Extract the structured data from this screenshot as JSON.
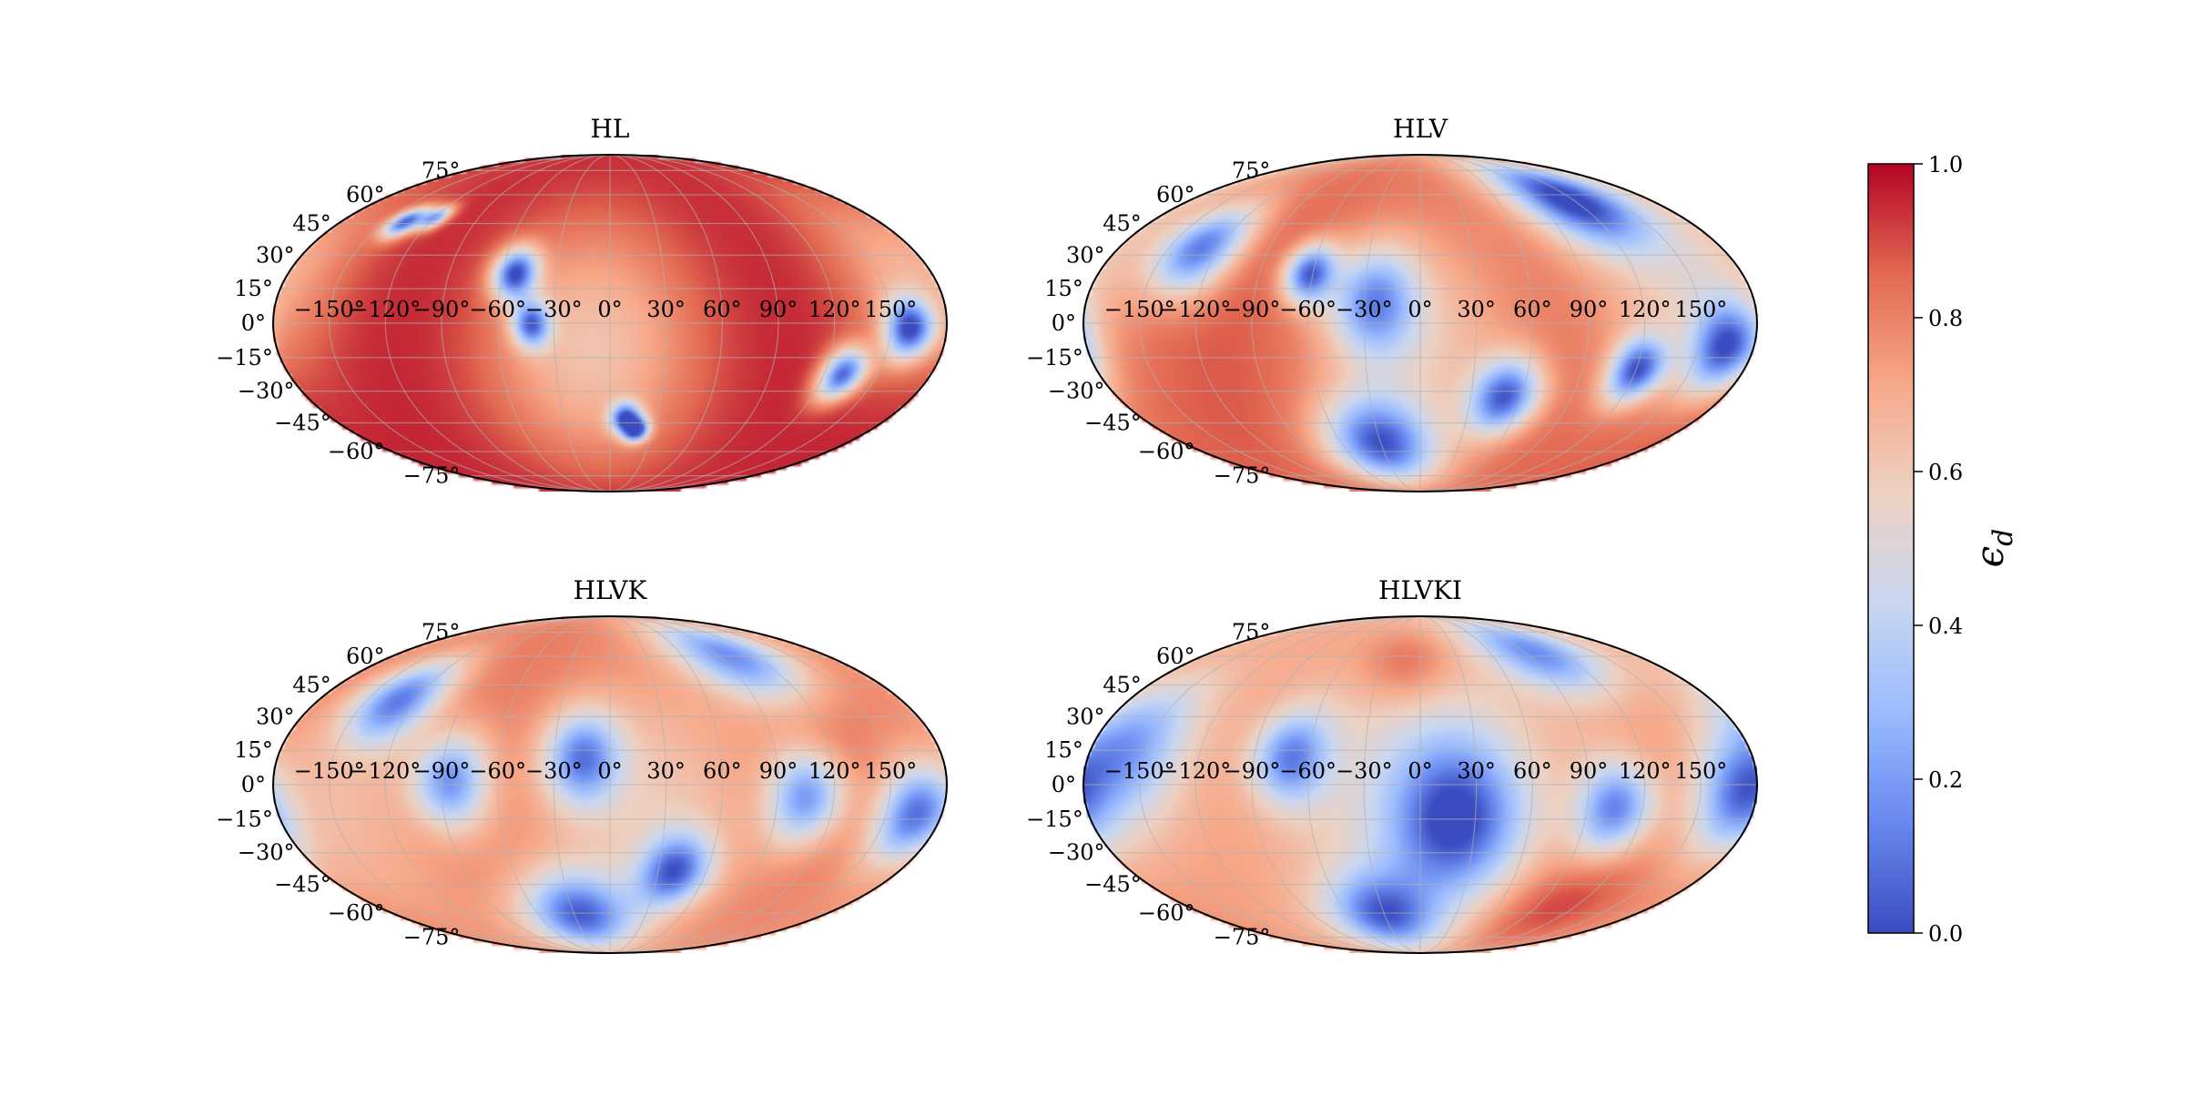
{
  "chart_data": [
    {
      "type": "heatmap",
      "projection": "mollweide",
      "title": "HL",
      "lon_ticks": [
        "−150°",
        "−120°",
        "−90°",
        "−60°",
        "−30°",
        "0°",
        "30°",
        "60°",
        "90°",
        "120°",
        "150°"
      ],
      "lat_ticks": [
        "75°",
        "60°",
        "45°",
        "30°",
        "15°",
        "0°",
        "−15°",
        "−30°",
        "−45°",
        "−60°",
        "−75°"
      ],
      "base_value": 0.97,
      "blobs": [
        {
          "lon": -137,
          "lat": 46,
          "depth": 0.85,
          "width": 5
        },
        {
          "lon": -120,
          "lat": 48,
          "depth": 0.7,
          "width": 4
        },
        {
          "lon": -53,
          "lat": 22,
          "depth": 0.85,
          "width": 8
        },
        {
          "lon": -42,
          "lat": 0,
          "depth": 0.7,
          "width": 7
        },
        {
          "lon": 10,
          "lat": -42,
          "depth": 0.8,
          "width": 5
        },
        {
          "lon": 18,
          "lat": -48,
          "depth": 0.85,
          "width": 4
        },
        {
          "lon": 130,
          "lat": -22,
          "depth": 0.85,
          "width": 8
        },
        {
          "lon": 160,
          "lat": -2,
          "depth": 0.8,
          "width": 9
        },
        {
          "lon": -10,
          "lat": -10,
          "depth": 0.35,
          "width": 40
        },
        {
          "lon": 170,
          "lat": 20,
          "depth": 0.3,
          "width": 30
        }
      ]
    },
    {
      "type": "heatmap",
      "projection": "mollweide",
      "title": "HLV",
      "lon_ticks": [
        "−150°",
        "−120°",
        "−90°",
        "−60°",
        "−30°",
        "0°",
        "30°",
        "60°",
        "90°",
        "120°",
        "150°"
      ],
      "lat_ticks": [
        "75°",
        "60°",
        "45°",
        "30°",
        "15°",
        "0°",
        "−15°",
        "−30°",
        "−45°",
        "−60°",
        "−75°"
      ],
      "base_value": 0.9,
      "blobs": [
        {
          "lon": -130,
          "lat": 33,
          "depth": 0.7,
          "width": 14
        },
        {
          "lon": -62,
          "lat": 22,
          "depth": 0.75,
          "width": 9
        },
        {
          "lon": -25,
          "lat": 10,
          "depth": 0.55,
          "width": 16
        },
        {
          "lon": -30,
          "lat": -55,
          "depth": 0.75,
          "width": 16
        },
        {
          "lon": 50,
          "lat": -32,
          "depth": 0.75,
          "width": 12
        },
        {
          "lon": 120,
          "lat": -20,
          "depth": 0.75,
          "width": 10
        },
        {
          "lon": 165,
          "lat": -10,
          "depth": 0.7,
          "width": 13
        },
        {
          "lon": 115,
          "lat": 58,
          "depth": 0.75,
          "width": 16
        },
        {
          "lon": -5,
          "lat": -10,
          "depth": 0.3,
          "width": 40
        },
        {
          "lon": 150,
          "lat": 25,
          "depth": 0.35,
          "width": 40
        }
      ]
    },
    {
      "type": "heatmap",
      "projection": "mollweide",
      "title": "HLVK",
      "lon_ticks": [
        "−150°",
        "−120°",
        "−90°",
        "−60°",
        "−30°",
        "0°",
        "30°",
        "60°",
        "90°",
        "120°",
        "150°"
      ],
      "lat_ticks": [
        "75°",
        "60°",
        "45°",
        "30°",
        "15°",
        "0°",
        "−15°",
        "−30°",
        "−45°",
        "−60°",
        "−75°"
      ],
      "base_value": 0.85,
      "blobs": [
        {
          "lon": -130,
          "lat": 38,
          "depth": 0.65,
          "width": 14
        },
        {
          "lon": -85,
          "lat": 2,
          "depth": 0.6,
          "width": 14
        },
        {
          "lon": -15,
          "lat": 12,
          "depth": 0.6,
          "width": 14
        },
        {
          "lon": -25,
          "lat": -60,
          "depth": 0.7,
          "width": 15
        },
        {
          "lon": 40,
          "lat": -38,
          "depth": 0.65,
          "width": 12
        },
        {
          "lon": 105,
          "lat": -5,
          "depth": 0.6,
          "width": 14
        },
        {
          "lon": 165,
          "lat": -12,
          "depth": 0.65,
          "width": 14
        },
        {
          "lon": 100,
          "lat": 60,
          "depth": 0.65,
          "width": 16
        },
        {
          "lon": 20,
          "lat": -10,
          "depth": 0.25,
          "width": 45
        },
        {
          "lon": -150,
          "lat": -10,
          "depth": 0.2,
          "width": 40
        }
      ]
    },
    {
      "type": "heatmap",
      "projection": "mollweide",
      "title": "HLVKI",
      "lon_ticks": [
        "−150°",
        "−120°",
        "−90°",
        "−60°",
        "−30°",
        "0°",
        "30°",
        "60°",
        "90°",
        "120°",
        "150°"
      ],
      "lat_ticks": [
        "75°",
        "60°",
        "45°",
        "30°",
        "15°",
        "0°",
        "−15°",
        "−30°",
        "−45°",
        "−60°",
        "−75°"
      ],
      "base_value": 0.75,
      "blobs": [
        {
          "lon": -160,
          "lat": 15,
          "depth": 0.55,
          "width": 22
        },
        {
          "lon": -70,
          "lat": 12,
          "depth": 0.55,
          "width": 14
        },
        {
          "lon": 20,
          "lat": -15,
          "depth": 0.6,
          "width": 24
        },
        {
          "lon": -30,
          "lat": -60,
          "depth": 0.6,
          "width": 15
        },
        {
          "lon": 105,
          "lat": -10,
          "depth": 0.6,
          "width": 14
        },
        {
          "lon": 170,
          "lat": -5,
          "depth": 0.55,
          "width": 16
        },
        {
          "lon": 100,
          "lat": 62,
          "depth": 0.55,
          "width": 15
        },
        {
          "lon": 0,
          "lat": 0,
          "depth": 0.25,
          "width": 50
        },
        {
          "lon": -10,
          "lat": 55,
          "depth": -0.2,
          "width": 15
        },
        {
          "lon": 100,
          "lat": -55,
          "depth": -0.2,
          "width": 20
        }
      ]
    }
  ],
  "colorbar": {
    "label": "ε_d",
    "label_main": "ϵ",
    "label_sub": "d",
    "ticks": [
      "0.0",
      "0.2",
      "0.4",
      "0.6",
      "0.8",
      "1.0"
    ],
    "range": [
      0,
      1
    ],
    "cmap": "coolwarm",
    "stops": [
      "#3b4cc0",
      "#6788ee",
      "#9abbff",
      "#c9d7f0",
      "#edd1c2",
      "#f7a889",
      "#e26952",
      "#b40426"
    ]
  }
}
